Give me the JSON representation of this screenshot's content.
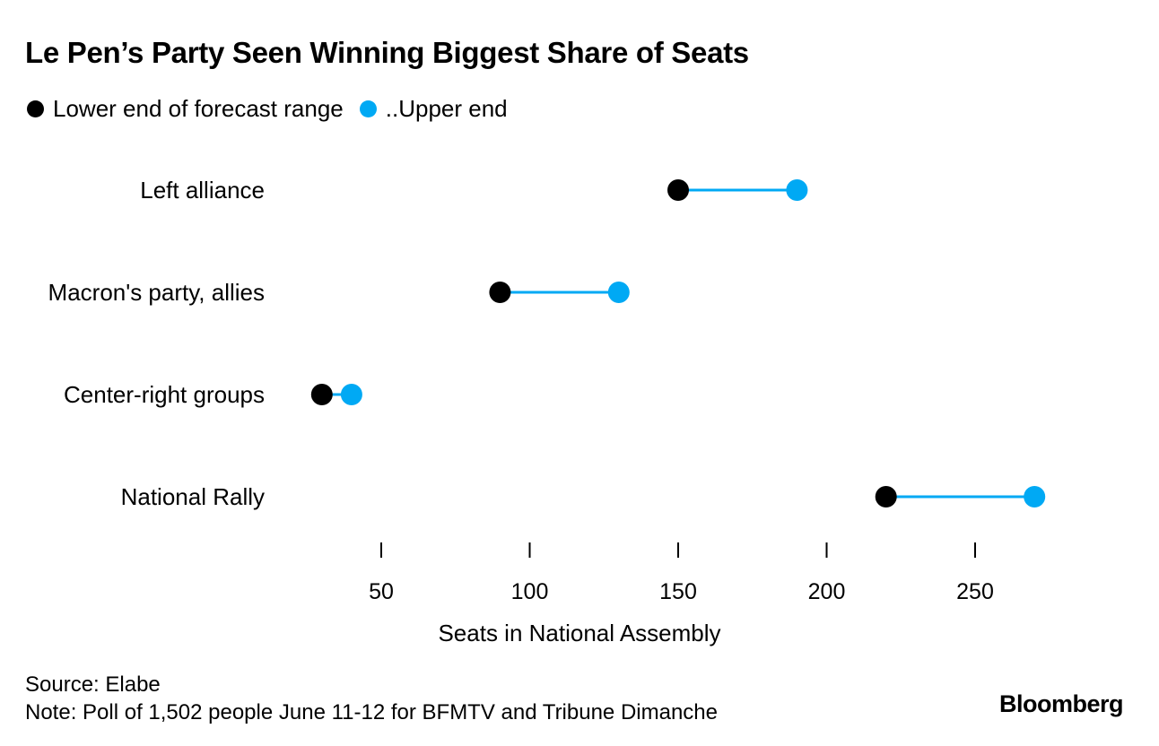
{
  "chart_data": {
    "type": "dumbbell",
    "title": "Le Pen’s Party Seen Winning Biggest Share of Seats",
    "legend": [
      {
        "label": "Lower end of forecast range",
        "color": "#000000"
      },
      {
        "label": "..Upper end",
        "color": "#00a9f4"
      }
    ],
    "categories": [
      "Left alliance",
      "Macron's party, allies",
      "Center-right groups",
      "National Rally"
    ],
    "series": [
      {
        "name": "Lower end of forecast range",
        "values": [
          150,
          90,
          30,
          220
        ]
      },
      {
        "name": "..Upper end",
        "values": [
          190,
          130,
          40,
          270
        ]
      }
    ],
    "xlabel": "Seats in National Assembly",
    "xticks": [
      50,
      100,
      150,
      200,
      250
    ],
    "xtick_labels": [
      "50",
      "100",
      "150",
      "200",
      "250"
    ],
    "grid": false
  },
  "footer": {
    "source": "Source: Elabe",
    "note": "Note: Poll of 1,502 people June 11-12 for BFMTV and Tribune Dimanche",
    "brand": "Bloomberg"
  }
}
